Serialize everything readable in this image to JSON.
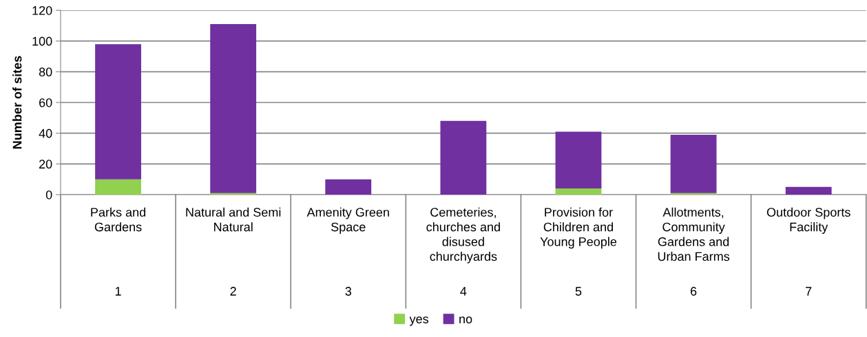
{
  "chart_data": {
    "type": "bar",
    "stacked": true,
    "ylabel": "Number of sites",
    "categories": [
      "Parks and Gardens",
      "Natural and Semi Natural",
      "Amenity Green Space",
      "Cemeteries, churches and disused churchyards",
      "Provision for Children and Young People",
      "Allotments, Community Gardens and Urban Farms",
      "Outdoor Sports Facility"
    ],
    "series": [
      {
        "name": "yes",
        "color": "#92d050",
        "values": [
          10,
          1,
          0,
          0,
          4,
          1,
          0
        ]
      },
      {
        "name": "no",
        "color": "#7030a0",
        "values": [
          88,
          110,
          10,
          48,
          37,
          38,
          5
        ]
      }
    ],
    "annotations": [
      "1",
      "2",
      "3",
      "4",
      "5",
      "6",
      "7"
    ],
    "ylim": [
      0,
      120
    ],
    "yticks": [
      0,
      20,
      40,
      60,
      80,
      100,
      120
    ],
    "grid": "y",
    "legend": "bottom"
  }
}
